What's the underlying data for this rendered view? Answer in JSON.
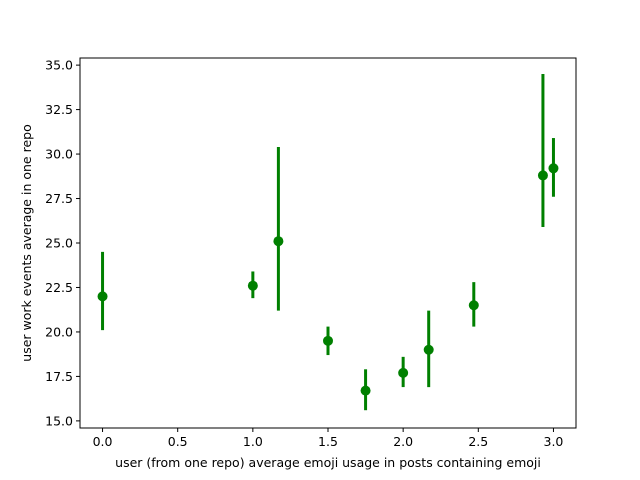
{
  "chart_data": {
    "type": "scatter",
    "title": "",
    "xlabel": "user (from one repo) average emoji usage in posts containing emoji",
    "ylabel": "user work events average in one repo",
    "xlim": [
      -0.15,
      3.15
    ],
    "ylim": [
      14.6,
      35.4
    ],
    "xticks": [
      0.0,
      0.5,
      1.0,
      1.5,
      2.0,
      2.5,
      3.0
    ],
    "xtick_labels": [
      "0.0",
      "0.5",
      "1.0",
      "1.5",
      "2.0",
      "2.5",
      "3.0"
    ],
    "yticks": [
      15.0,
      17.5,
      20.0,
      22.5,
      25.0,
      27.5,
      30.0,
      32.5,
      35.0
    ],
    "ytick_labels": [
      "15.0",
      "17.5",
      "20.0",
      "22.5",
      "25.0",
      "27.5",
      "30.0",
      "32.5",
      "35.0"
    ],
    "grid": false,
    "color": "#008000",
    "points": [
      {
        "x": 0.0,
        "y": 22.0,
        "ylow": 20.1,
        "yhigh": 24.5
      },
      {
        "x": 1.0,
        "y": 22.6,
        "ylow": 21.9,
        "yhigh": 23.4
      },
      {
        "x": 1.17,
        "y": 25.1,
        "ylow": 21.2,
        "yhigh": 30.4
      },
      {
        "x": 1.5,
        "y": 19.5,
        "ylow": 18.7,
        "yhigh": 20.3
      },
      {
        "x": 1.75,
        "y": 16.7,
        "ylow": 15.6,
        "yhigh": 17.9
      },
      {
        "x": 2.0,
        "y": 17.7,
        "ylow": 16.9,
        "yhigh": 18.6
      },
      {
        "x": 2.17,
        "y": 19.0,
        "ylow": 16.9,
        "yhigh": 21.2
      },
      {
        "x": 2.47,
        "y": 21.5,
        "ylow": 20.3,
        "yhigh": 22.8
      },
      {
        "x": 2.93,
        "y": 28.8,
        "ylow": 25.9,
        "yhigh": 34.5
      },
      {
        "x": 3.0,
        "y": 29.2,
        "ylow": 27.6,
        "yhigh": 30.9
      }
    ]
  }
}
